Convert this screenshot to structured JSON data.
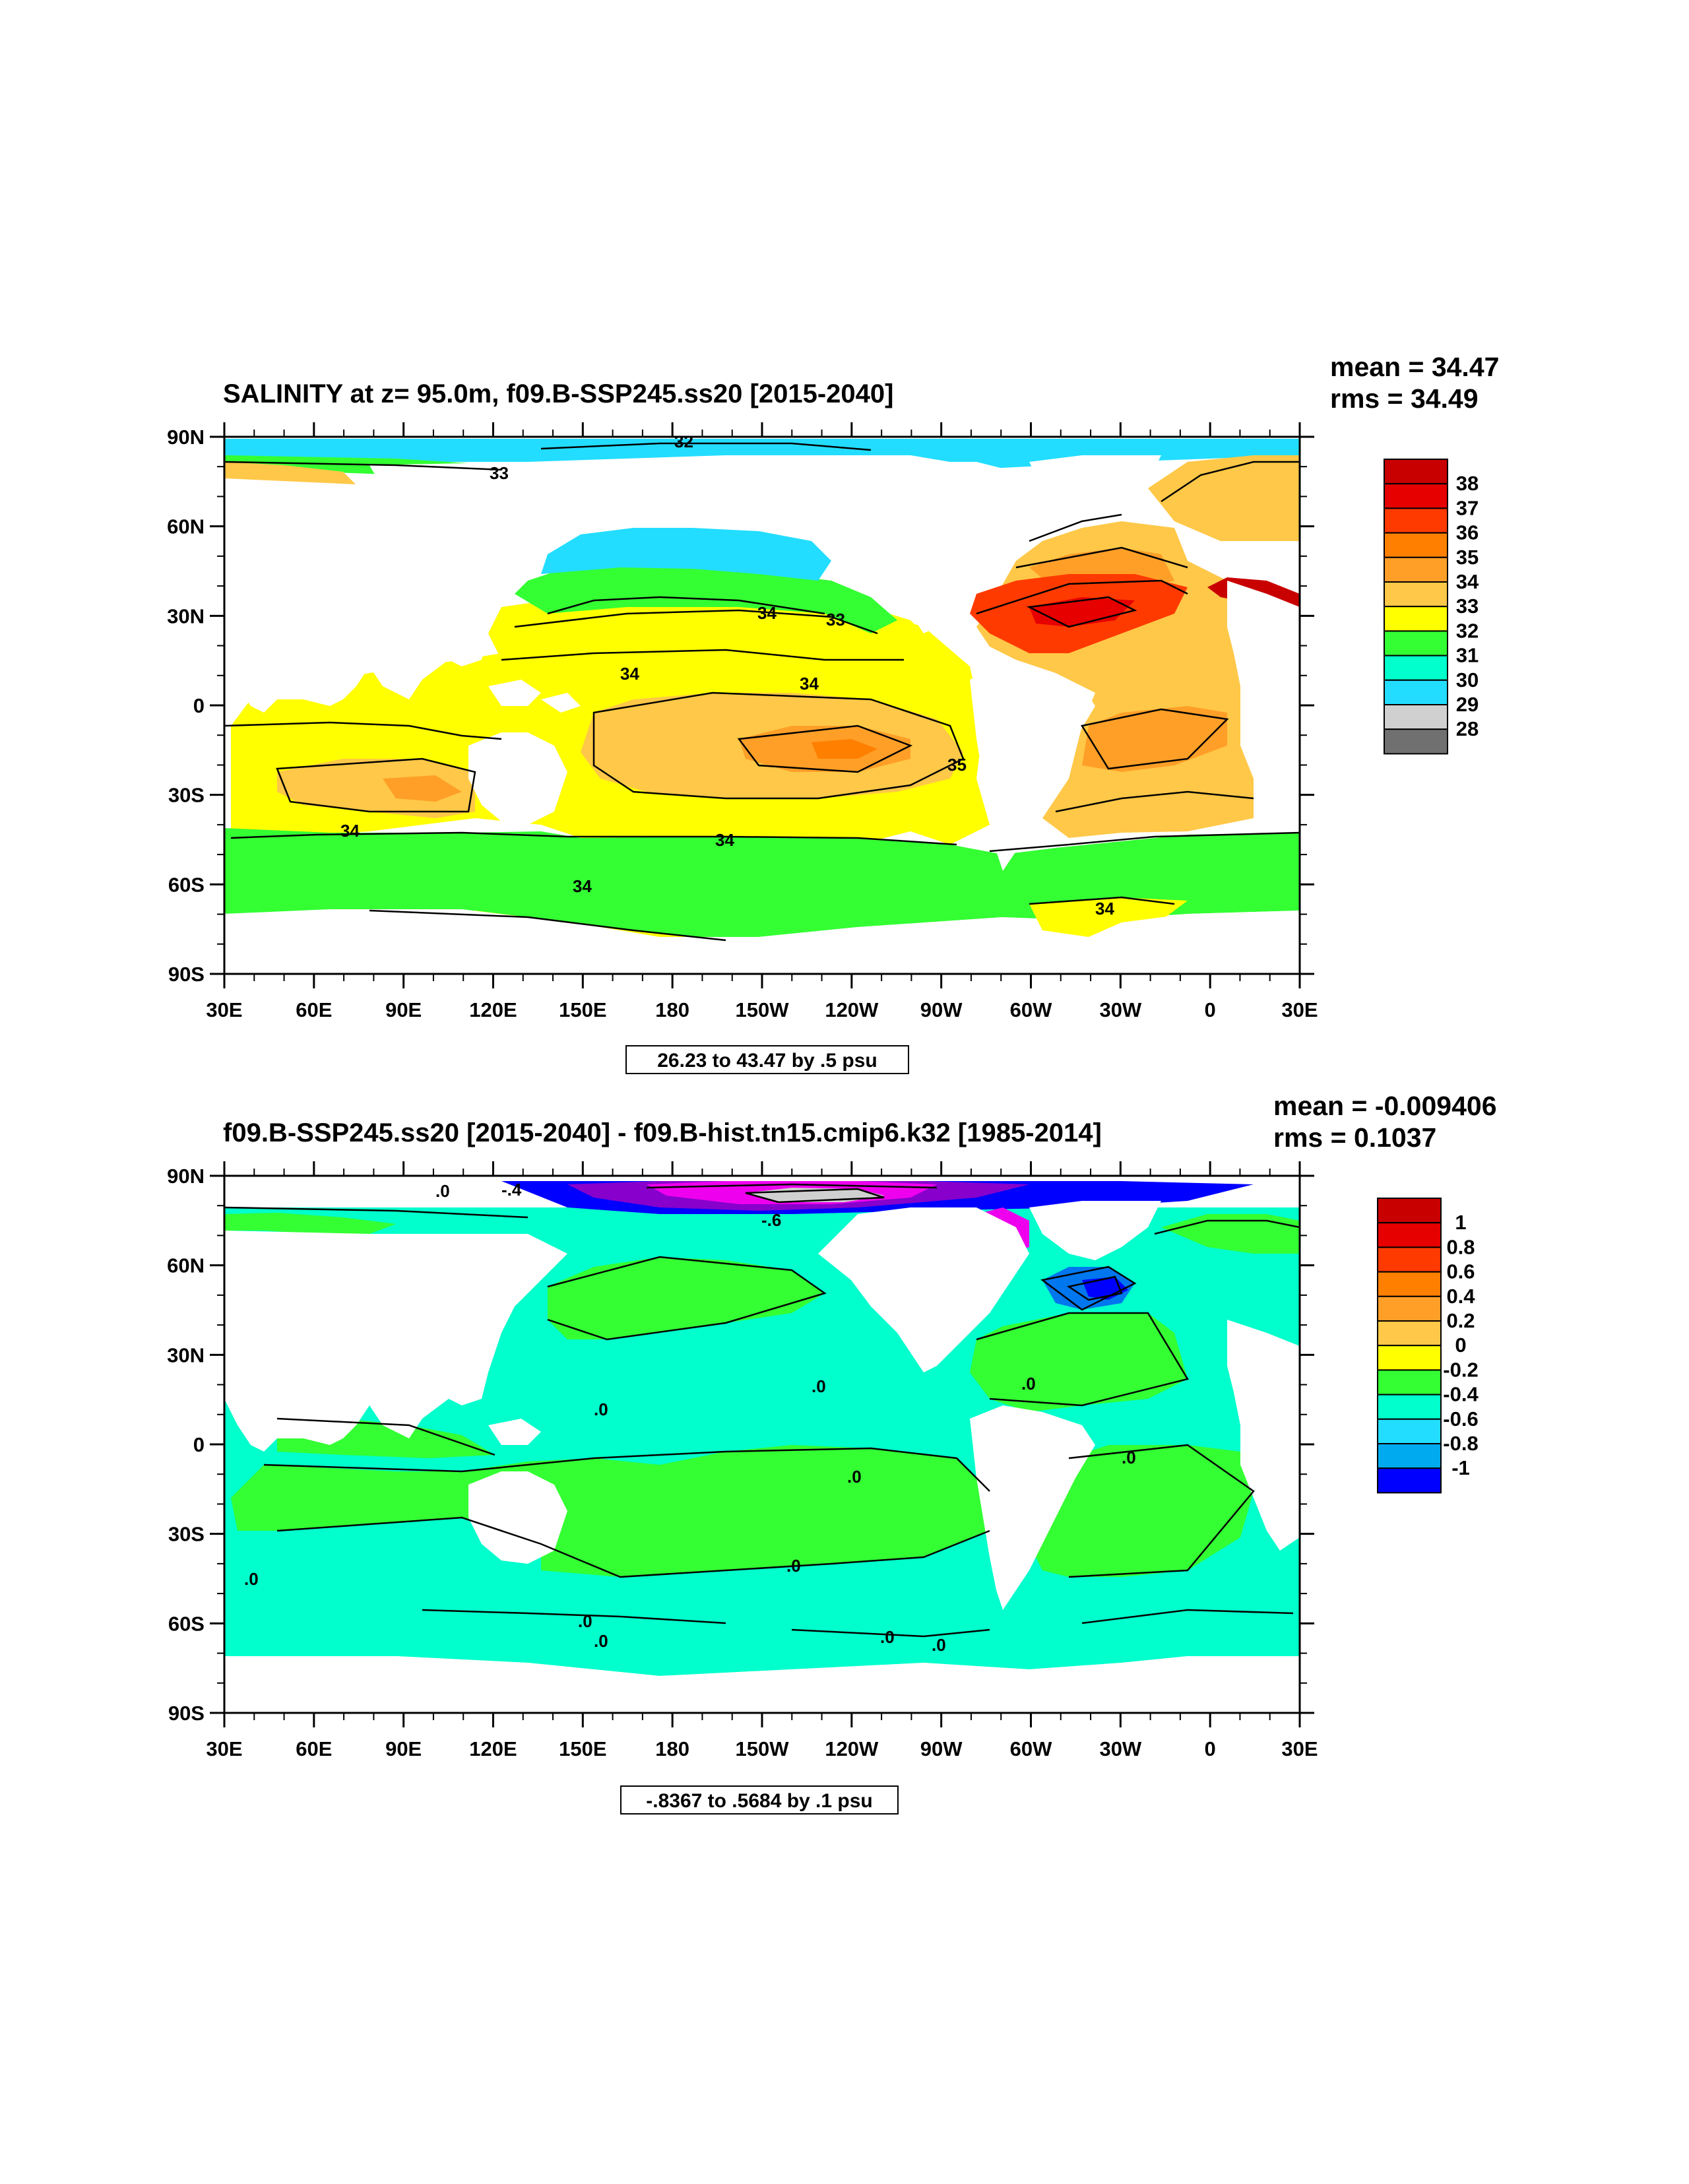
{
  "panels": [
    {
      "title": "SALINITY at z=  95.0m, f09.B-SSP245.ss20 [2015-2040]",
      "mean_text": "mean = 34.47",
      "rms_text": "rms = 34.49",
      "range_text": "26.23 to 43.47 by .5 psu",
      "colorbar_labels": [
        "38",
        "37",
        "36",
        "35",
        "34",
        "33",
        "32",
        "31",
        "30",
        "29",
        "28"
      ],
      "contour_labels": [
        "32",
        "33",
        "34",
        "33",
        "34",
        "34",
        "35",
        "34",
        "34",
        "34",
        "34"
      ]
    },
    {
      "title": "f09.B-SSP245.ss20 [2015-2040] - f09.B-hist.tn15.cmip6.k32 [1985-2014]",
      "mean_text": "mean = -0.009406",
      "rms_text": "rms = 0.1037",
      "range_text": "-.8367 to .5684 by .1 psu",
      "colorbar_labels": [
        "1",
        "0.8",
        "0.6",
        "0.4",
        "0.2",
        "0",
        "-0.2",
        "-0.4",
        "-0.6",
        "-0.8",
        "-1"
      ],
      "contour_labels": [
        ".0",
        ".0",
        ".0",
        ".0",
        ".0",
        ".0",
        ".0",
        ".0",
        ".0",
        ".0",
        ".0",
        ".0",
        "-.4",
        "-.6"
      ]
    }
  ],
  "axes": {
    "lat_labels": [
      "90N",
      "60N",
      "30N",
      "0",
      "30S",
      "60S",
      "90S"
    ],
    "lon_labels": [
      "30E",
      "60E",
      "90E",
      "120E",
      "150E",
      "180",
      "150W",
      "120W",
      "90W",
      "60W",
      "30W",
      "0",
      "30E"
    ]
  },
  "colors": {
    "scale": [
      "#c80000",
      "#e60000",
      "#ff3a00",
      "#ff7f00",
      "#ff9f28",
      "#ffc848",
      "#ffff00",
      "#33ff33",
      "#00ffcc",
      "#22ddff",
      "#0099ee",
      "#0044ff",
      "#0000ff",
      "#8800cc",
      "#ee00ee",
      "#cccccc",
      "#777777"
    ],
    "salinity_colorbar": [
      "#c80000",
      "#e60000",
      "#ff3a00",
      "#ff7f00",
      "#ff9f28",
      "#ffc848",
      "#ffff00",
      "#33ff33",
      "#00ffcc",
      "#22ddff",
      "#00aaee",
      "#0077ee",
      "#0000ff",
      "#8800cc",
      "#ee00ee",
      "#d0d0d0",
      "#707070"
    ],
    "anomaly_colorbar": [
      "#c80000",
      "#e60000",
      "#ff3a00",
      "#ff7f00",
      "#ff9f28",
      "#ffc848",
      "#ffff00",
      "#33ff33",
      "#00ffcc",
      "#22ddff",
      "#00aaee",
      "#0077ee",
      "#0000ff",
      "#8800cc",
      "#ee00ee",
      "#d0d0d0",
      "#707070"
    ]
  }
}
